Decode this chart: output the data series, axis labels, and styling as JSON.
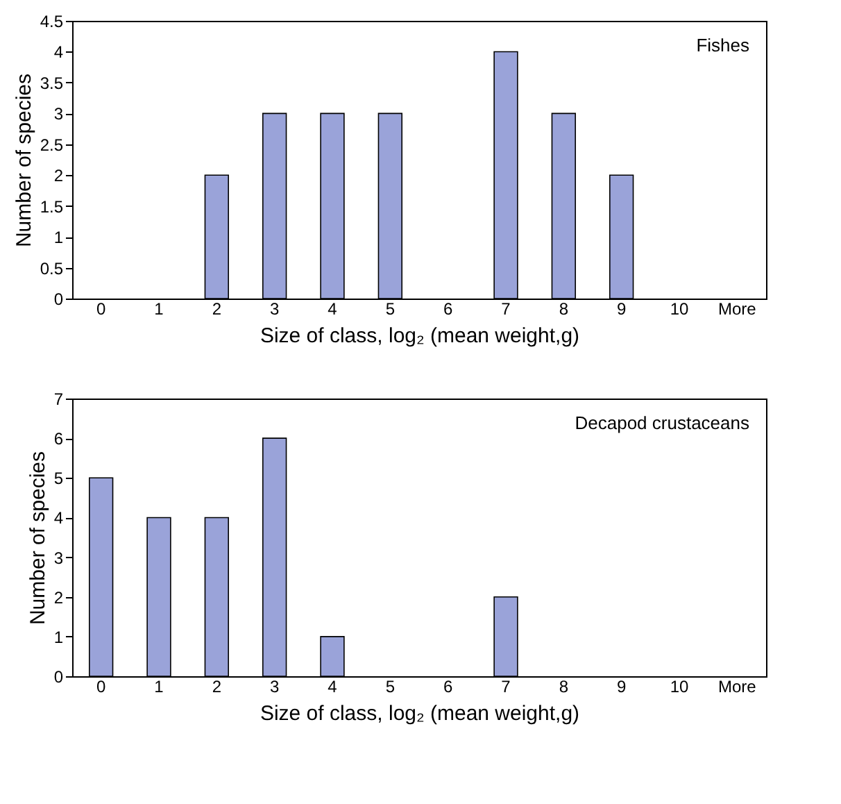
{
  "chart_data": [
    {
      "type": "bar",
      "categories": [
        "0",
        "1",
        "2",
        "3",
        "4",
        "5",
        "6",
        "7",
        "8",
        "9",
        "10",
        "More"
      ],
      "values": [
        0,
        0,
        2,
        3,
        3,
        3,
        0,
        4,
        3,
        2,
        0,
        0
      ],
      "color": "#9aa3d9",
      "xlabel": "Size of class, log₂ (mean weight,g)",
      "ylabel": "Number of species",
      "ylim": [
        0,
        4.5
      ],
      "yticks": [
        0,
        0.5,
        1,
        1.5,
        2,
        2.5,
        3,
        3.5,
        4,
        4.5
      ],
      "grid": false,
      "annotations": [
        "Fishes"
      ]
    },
    {
      "type": "bar",
      "categories": [
        "0",
        "1",
        "2",
        "3",
        "4",
        "5",
        "6",
        "7",
        "8",
        "9",
        "10",
        "More"
      ],
      "values": [
        5,
        4,
        4,
        6,
        1,
        0,
        0,
        2,
        0,
        0,
        0,
        0
      ],
      "color": "#9aa3d9",
      "xlabel": "Size of class, log₂ (mean weight,g)",
      "ylabel": "Number of species",
      "ylim": [
        0,
        7
      ],
      "yticks": [
        0,
        1,
        2,
        3,
        4,
        5,
        6,
        7
      ],
      "grid": false,
      "annotations": [
        "Decapod crustaceans"
      ]
    }
  ]
}
